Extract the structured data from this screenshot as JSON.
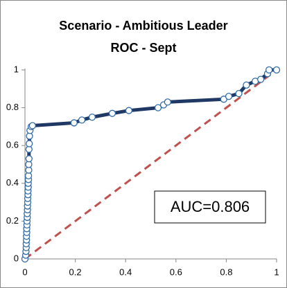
{
  "chart_data": {
    "type": "line",
    "title": [
      "Scenario - Ambitious Leader",
      "ROC - Sept"
    ],
    "annotation": "AUC=0.806",
    "xlim": [
      0,
      1
    ],
    "xticks": [
      0,
      0.2,
      0.4,
      0.6,
      0.8,
      1
    ],
    "ylim": [
      0,
      1
    ],
    "yticks": [
      0,
      0.2,
      0.4,
      0.6,
      0.8,
      1
    ],
    "grid": false,
    "series": [
      {
        "color": "#1f3864",
        "marker_color": "#2e6aa8",
        "marker": true,
        "dashed": false,
        "x": [
          0,
          0.003,
          0.004,
          0.005,
          0.005,
          0.006,
          0.006,
          0.007,
          0.007,
          0.008,
          0.008,
          0.009,
          0.009,
          0.01,
          0.01,
          0.011,
          0.011,
          0.012,
          0.012,
          0.013,
          0.013,
          0.014,
          0.014,
          0.015,
          0.015,
          0.016,
          0.016,
          0.017,
          0.018,
          0.02,
          0.025,
          0.03,
          0.195,
          0.226,
          0.267,
          0.347,
          0.413,
          0.529,
          0.551,
          0.567,
          0.79,
          0.81,
          0.85,
          0.88,
          0.915,
          0.937,
          0.964,
          0.97,
          1
        ],
        "values": [
          0,
          0.02,
          0.04,
          0.06,
          0.08,
          0.1,
          0.12,
          0.14,
          0.16,
          0.18,
          0.2,
          0.22,
          0.24,
          0.26,
          0.28,
          0.3,
          0.32,
          0.34,
          0.36,
          0.38,
          0.4,
          0.42,
          0.44,
          0.47,
          0.5,
          0.53,
          0.58,
          0.61,
          0.65,
          0.68,
          0.7,
          0.705,
          0.72,
          0.735,
          0.75,
          0.77,
          0.785,
          0.8,
          0.815,
          0.83,
          0.845,
          0.86,
          0.875,
          0.92,
          0.94,
          0.95,
          0.98,
          1,
          1
        ]
      },
      {
        "color": "#c0504d",
        "marker": false,
        "dashed": true,
        "x": [
          0,
          1
        ],
        "values": [
          0,
          1
        ]
      }
    ]
  }
}
